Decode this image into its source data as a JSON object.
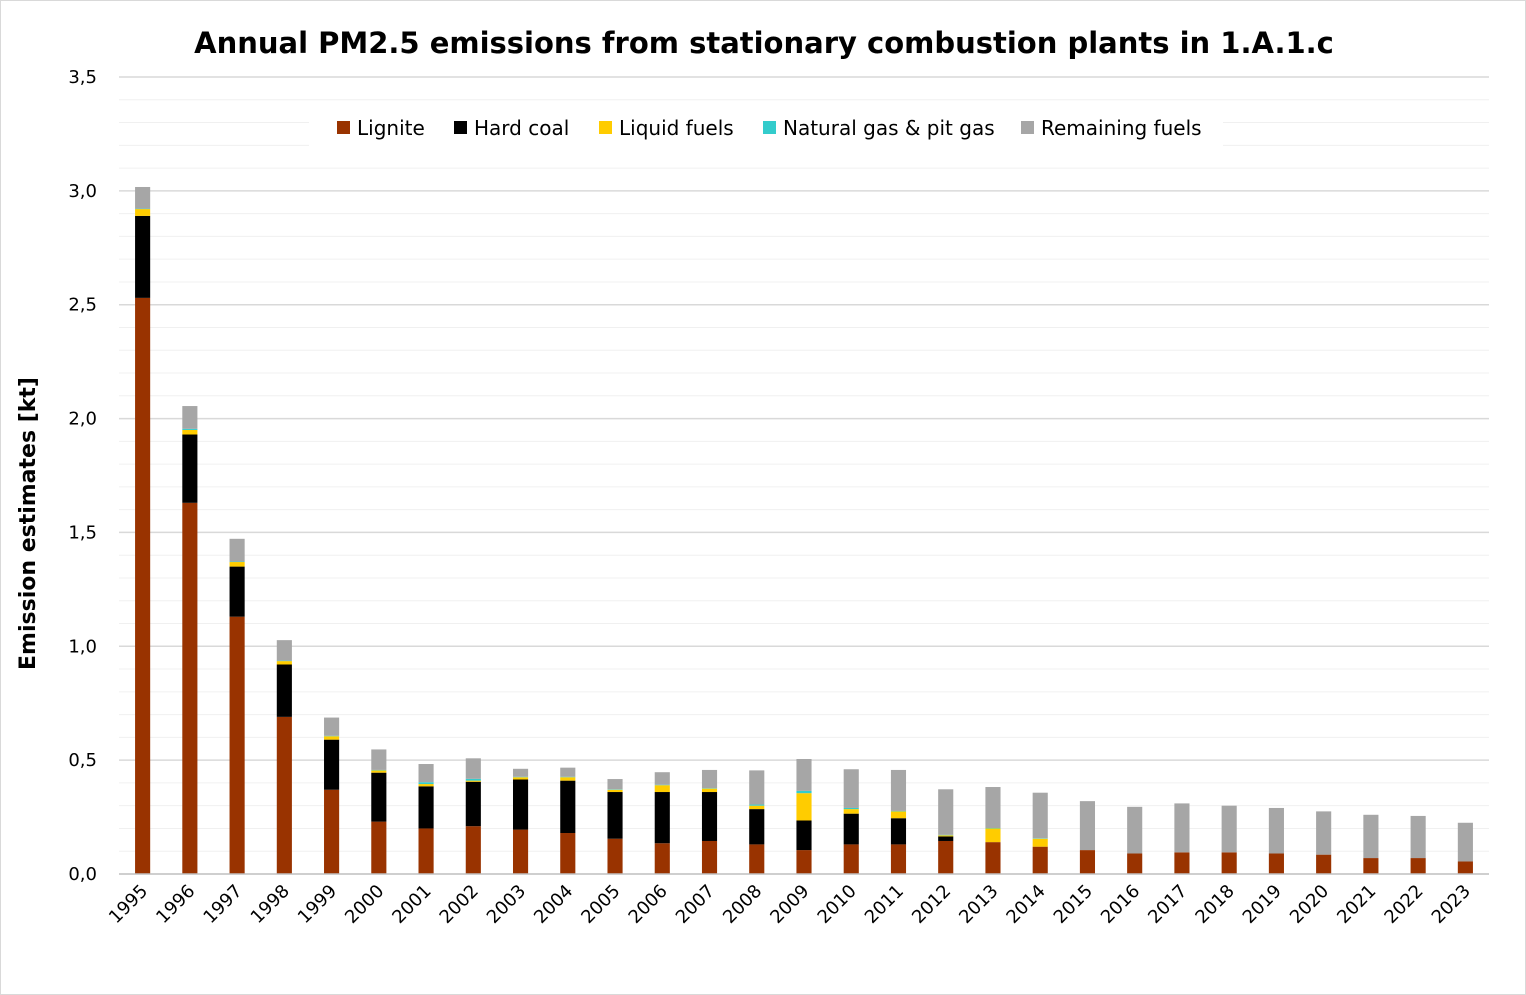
{
  "chart_data": {
    "type": "bar",
    "stacked": true,
    "title": "Annual PM2.5 emissions from stationary combustion plants in 1.A.1.c",
    "ylabel": "Emission estimates [kt]",
    "xlabel": "",
    "ylim": [
      0,
      3.5
    ],
    "ytick_values": [
      0,
      0.5,
      1.0,
      1.5,
      2.0,
      2.5,
      3.0,
      3.5
    ],
    "ytick_labels": [
      "0,0",
      "0,5",
      "1,0",
      "1,5",
      "2,0",
      "2,5",
      "3,0",
      "3,5"
    ],
    "grid": "major and minor horizontal",
    "legend_position": "top",
    "categories": [
      "1995",
      "1996",
      "1997",
      "1998",
      "1999",
      "2000",
      "2001",
      "2002",
      "2003",
      "2004",
      "2005",
      "2006",
      "2007",
      "2008",
      "2009",
      "2010",
      "2011",
      "2012",
      "2013",
      "2014",
      "2015",
      "2016",
      "2017",
      "2018",
      "2019",
      "2020",
      "2021",
      "2022",
      "2023"
    ],
    "series": [
      {
        "name": "Lignite",
        "color": "#993300",
        "values": [
          2.53,
          1.63,
          1.13,
          0.69,
          0.37,
          0.23,
          0.2,
          0.21,
          0.195,
          0.18,
          0.155,
          0.135,
          0.145,
          0.13,
          0.105,
          0.13,
          0.13,
          0.145,
          0.14,
          0.12,
          0.105,
          0.09,
          0.095,
          0.095,
          0.09,
          0.085,
          0.07,
          0.07,
          0.055
        ]
      },
      {
        "name": "Hard coal",
        "color": "#000000",
        "values": [
          0.36,
          0.3,
          0.22,
          0.23,
          0.22,
          0.215,
          0.185,
          0.195,
          0.22,
          0.23,
          0.205,
          0.225,
          0.215,
          0.155,
          0.13,
          0.135,
          0.115,
          0.02,
          0.0,
          0.0,
          0.0,
          0.0,
          0.0,
          0.0,
          0.0,
          0.0,
          0.0,
          0.0,
          0.0
        ]
      },
      {
        "name": "Liquid fuels",
        "color": "#ffcc00",
        "values": [
          0.03,
          0.02,
          0.02,
          0.015,
          0.015,
          0.01,
          0.01,
          0.005,
          0.01,
          0.015,
          0.01,
          0.03,
          0.015,
          0.015,
          0.12,
          0.02,
          0.03,
          0.005,
          0.06,
          0.035,
          0.0,
          0.0,
          0.0,
          0.0,
          0.0,
          0.0,
          0.0,
          0.0,
          0.0
        ]
      },
      {
        "name": "Natural gas & pit gas",
        "color": "#33cccc",
        "values": [
          0.002,
          0.005,
          0.002,
          0.002,
          0.002,
          0.002,
          0.008,
          0.008,
          0.002,
          0.002,
          0.002,
          0.002,
          0.002,
          0.005,
          0.01,
          0.005,
          0.002,
          0.002,
          0.002,
          0.002,
          0.0,
          0.0,
          0.0,
          0.0,
          0.0,
          0.0,
          0.0,
          0.0,
          0.0
        ]
      },
      {
        "name": "Remaining fuels",
        "color": "#a6a6a6",
        "values": [
          0.095,
          0.1,
          0.1,
          0.09,
          0.08,
          0.09,
          0.08,
          0.09,
          0.035,
          0.04,
          0.045,
          0.055,
          0.08,
          0.15,
          0.14,
          0.17,
          0.18,
          0.2,
          0.18,
          0.2,
          0.215,
          0.205,
          0.215,
          0.205,
          0.2,
          0.19,
          0.19,
          0.185,
          0.17
        ]
      }
    ]
  }
}
